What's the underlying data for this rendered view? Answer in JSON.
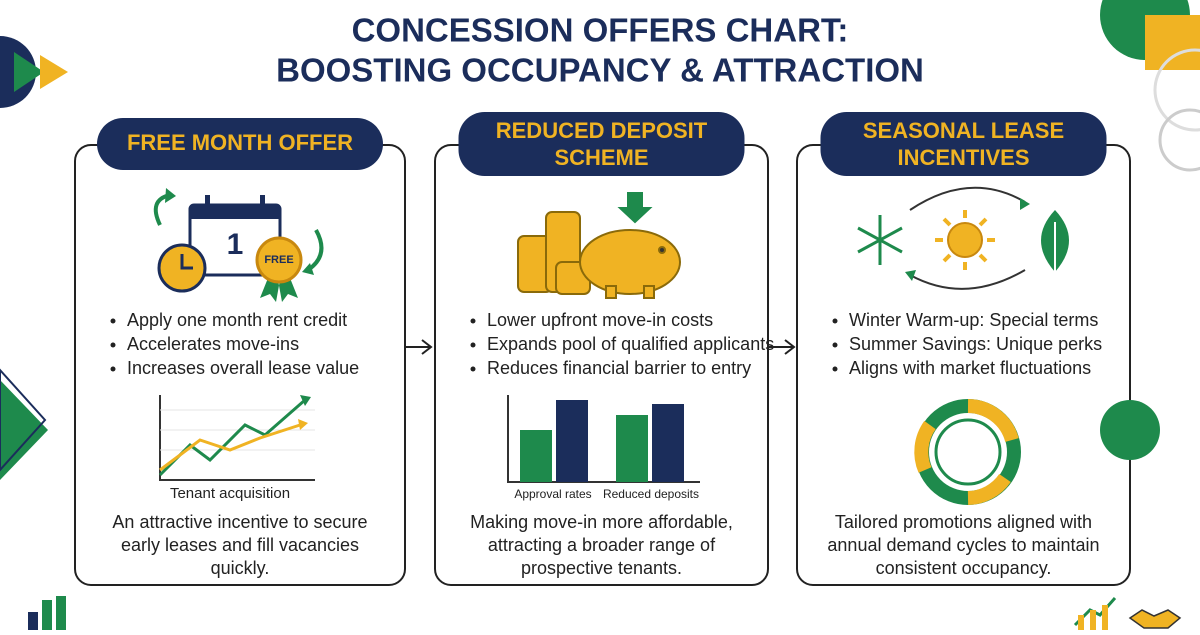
{
  "header": {
    "title_lines": [
      "CONCESSION OFFERS CHART:",
      "BOOSTING OCCUPANCY & ATTRACTION"
    ]
  },
  "panels": [
    {
      "title_lines": [
        "FREE MONTH OFFER"
      ],
      "icon_labels": [
        "1",
        "FREE"
      ],
      "bullets": [
        "Apply one month rent credit",
        "Accelerates move-ins",
        "Increases overall lease value"
      ],
      "chart_labels": [
        "Tenant acquisition"
      ],
      "summary_lines": [
        "An attractive incentive to secure",
        "early leases and fill vacancies",
        "quickly."
      ]
    },
    {
      "title_lines": [
        "REDUCED DEPOSIT",
        "SCHEME"
      ],
      "icon_labels": [],
      "bullets": [
        "Lower upfront move-in costs",
        "Expands pool of qualified applicants",
        "Reduces financial barrier to entry"
      ],
      "chart_labels": [
        "Approval rates",
        "Reduced deposits"
      ],
      "summary_lines": [
        "Making move-in more affordable,",
        "attracting a broader range of",
        "prospective tenants."
      ]
    },
    {
      "title_lines": [
        "SEASONAL LEASE",
        "INCENTIVES"
      ],
      "icon_labels": [],
      "bullets": [
        "Winter Warm-up: Special terms",
        "Summer Savings: Unique perks",
        "Aligns with market fluctuations"
      ],
      "chart_labels": [],
      "summary_lines": [
        "Tailored promotions aligned with",
        "annual demand cycles to maintain",
        "consistent occupancy."
      ]
    }
  ]
}
